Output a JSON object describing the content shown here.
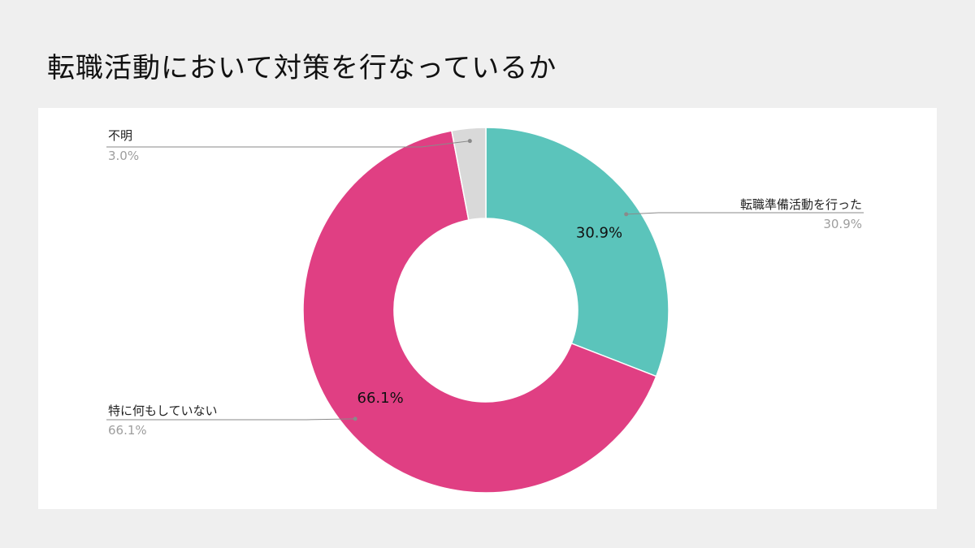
{
  "slide": {
    "title": "転職活動において対策を行なっているか"
  },
  "chart_data": {
    "type": "pie",
    "donut": true,
    "unit": "%",
    "slices": [
      {
        "label": "転職準備活動を行った",
        "value": 30.9,
        "value_text": "30.9%",
        "color": "#5bc4bb"
      },
      {
        "label": "特に何もしていない",
        "value": 66.1,
        "value_text": "66.1%",
        "color": "#e03f83"
      },
      {
        "label": "不明",
        "value": 3.0,
        "value_text": "3.0%",
        "color": "#d9d9d9"
      }
    ],
    "legend": "callout-labels"
  }
}
